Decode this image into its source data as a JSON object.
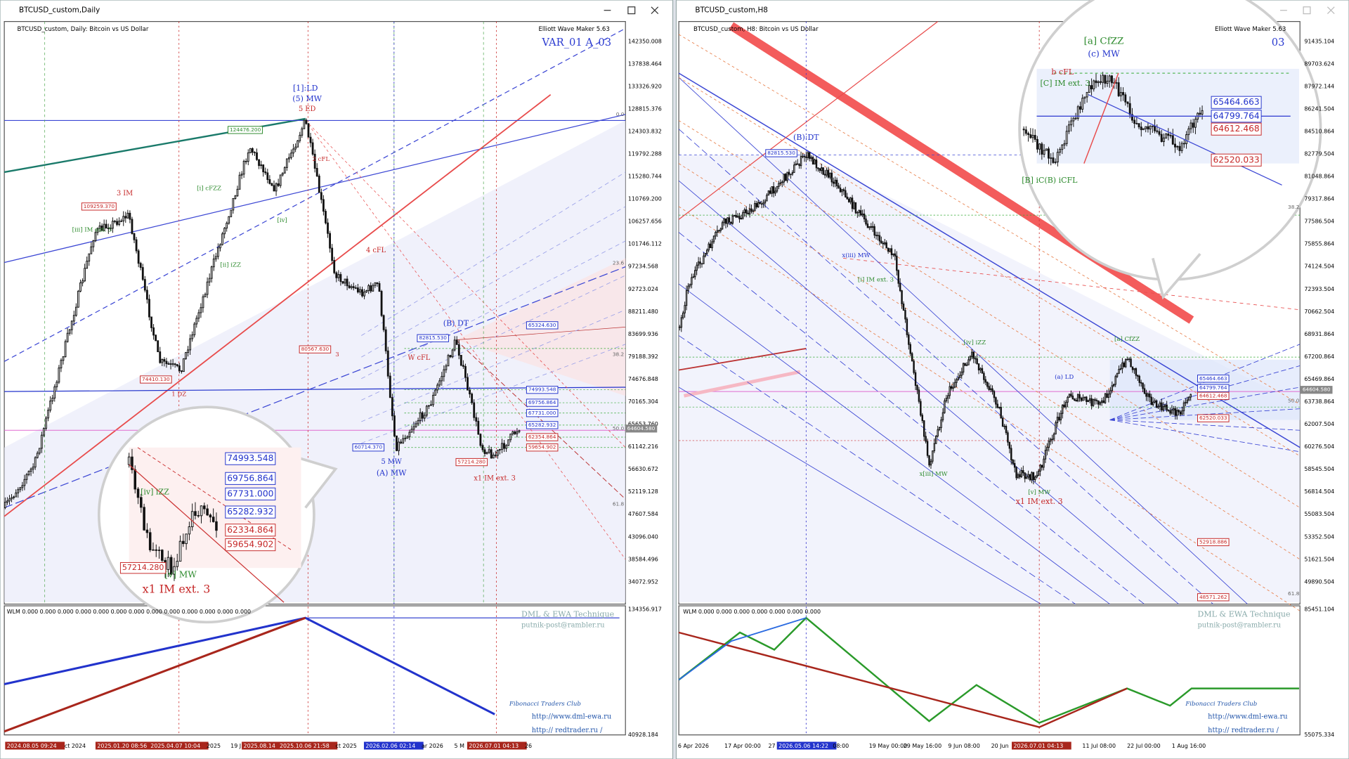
{
  "left_window": {
    "title": "BTCUSD_custom,Daily",
    "chart_label": "BTCUSD_custom, Daily:  Bitcoin vs US Dollar",
    "indicator": "Elliott Wave Maker 5.63",
    "variant": "VAR_01 A_03",
    "price_axis": [
      "142350.008",
      "137838.464",
      "133326.920",
      "128815.376",
      "124303.832",
      "119792.288",
      "115280.744",
      "110769.200",
      "106257.656",
      "101746.112",
      "97234.568",
      "92723.024",
      "88211.480",
      "83699.936",
      "79188.392",
      "74676.848",
      "70165.304",
      "65653.760",
      "61142.216",
      "56630.672",
      "52119.128",
      "47607.584",
      "43096.040",
      "38584.496",
      "34072.952"
    ],
    "indicator_axis": [
      "134356.917",
      "40928.184"
    ],
    "time_axis": [
      "2024.08.05 09:24",
      "ct 2024",
      "2025.01.20 08:56",
      "2025.04.07 10:04",
      "2025",
      "19 J",
      "2025.08.14",
      "2025.10.06 21:58",
      "ct 2025",
      "2026.02.06 02:14",
      "ar 2026",
      "5 M",
      "2026.07.01 04:13",
      "26"
    ],
    "wave_labels": [
      "[1]:LD",
      "(5) MW",
      "5 ED",
      "3 IM",
      "[iii] IM ext. 5",
      "4 cFL",
      "(B) DT",
      "W cFL",
      "5 MW",
      "(A) MW",
      "x1 IM ext. 3",
      "2 cFL",
      "1 DZ",
      "[ii] iZZ",
      "[i] cFZZ",
      "[iv]",
      "3",
      "x1 IM ext. 3",
      "[v] MW",
      "[iv] iZZ"
    ],
    "price_boxes": [
      "109259.370",
      "74410.130",
      "80567.630",
      "82815.530",
      "124476.200",
      "60714.370",
      "57214.280",
      "65324.630",
      "74993.548",
      "69756.864",
      "67731.000",
      "65282.932",
      "62354.864",
      "59654.902",
      "64604.580",
      "74993.548",
      "69756.864",
      "67731.000",
      "65282.932",
      "62334.864",
      "59654.902",
      "57214.280"
    ],
    "fib_levels": [
      "0.0",
      "23.6",
      "38.2",
      "50.0",
      "61.8"
    ],
    "indicator_name": "WLM 0.000 0.000 0.000 0.000 0.000 0.000 0.000 0.000 0.000 0.000 0.000 0.000 0.000",
    "footer": [
      "DML & EWA Technique",
      "putnik-post@rambler.ru",
      "Fibonacci    Traders    Club",
      "http://www.dml-ewa.ru",
      "http://  redtrader.ru /"
    ]
  },
  "right_window": {
    "title": "BTCUSD_custom,H8",
    "chart_label": "BTCUSD_custom, H8:  Bitcoin vs US Dollar",
    "indicator": "Elliott Wave Maker 5.63",
    "variant": "03",
    "price_axis": [
      "91435.104",
      "89703.624",
      "87972.144",
      "86241.504",
      "84510.864",
      "82779.504",
      "81048.864",
      "79317.864",
      "77586.504",
      "75855.864",
      "74124.504",
      "72393.504",
      "70662.504",
      "68931.864",
      "67200.864",
      "65469.864",
      "63738.864",
      "62007.504",
      "60276.504",
      "58545.504",
      "56814.504",
      "55083.504",
      "53352.504",
      "51621.504",
      "49890.504"
    ],
    "indicator_axis": [
      "85451.104",
      "55075.334"
    ],
    "time_axis": [
      "6 Apr 2026",
      "17 Apr 00:00",
      "27",
      "2026.05.06 14:22",
      "08:00",
      "19 May 00:00",
      "29 May 16:00",
      "9 Jun 08:00",
      "20 Jun",
      "2026.07.01 04:13",
      "11 Jul 08:00",
      "22 Jul 00:00",
      "1 Aug 16:00"
    ],
    "wave_labels": [
      "(B):DT",
      "[iv] iZZ",
      "x[iii] MW",
      "x1 IM ext. 3",
      "[v] MW",
      "[a] CfZZ",
      "(a) LD",
      "[a] CfZZ",
      "(c) MW",
      "b cFL",
      "[C] IM ext. 3",
      "[B] iC(B) iCFL",
      "[i] IM ext. 3",
      "x(iii) MW"
    ],
    "price_boxes": [
      "82815.530",
      "65464.663",
      "64799.764",
      "64612.468",
      "62520.033",
      "52918.886",
      "48571.262",
      "64604.580",
      "65464.663",
      "64799.764",
      "64612.468",
      "62520.033"
    ],
    "fib_levels": [
      "38.2",
      "50.0",
      "61.8"
    ],
    "indicator_name": "WLM 0.000 0.000 0.000 0.000 0.000 0.000 0.000",
    "footer": [
      "DML & EWA Technique",
      "putnik-post@rambler.ru",
      "Fibonacci    Traders    Club",
      "http://www.dml-ewa.ru",
      "http://  redtrader.ru /"
    ]
  }
}
